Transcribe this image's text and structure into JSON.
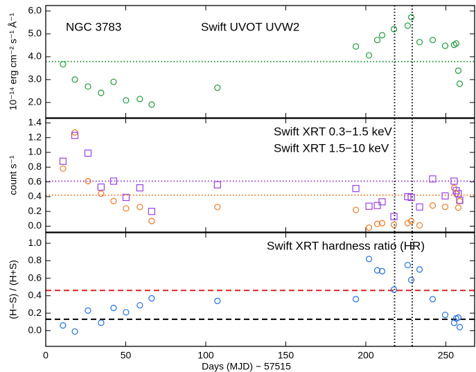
{
  "chart_data": [
    {
      "type": "scatter",
      "annotation": "NGC 3783",
      "ylabel": "10⁻¹⁴ erg cm⁻² s⁻¹ Å⁻¹",
      "xlim": [
        0,
        268
      ],
      "xticks": [
        0,
        50,
        100,
        150,
        200,
        250
      ],
      "ylim": [
        1.33,
        6.24
      ],
      "yticks": [
        {
          "value": 2,
          "label": "2.0"
        },
        {
          "value": 3,
          "label": "3.0"
        },
        {
          "value": 4,
          "label": "4.0"
        },
        {
          "value": 5,
          "label": "5.0"
        },
        {
          "value": 6,
          "label": "6.0"
        }
      ],
      "legend": "upper center",
      "x": [
        10.8,
        18.2,
        26.4,
        34.6,
        42.4,
        50.2,
        58.8,
        66.2,
        107.3,
        193.8,
        202,
        207.2,
        210.2,
        217.6,
        226.2,
        228.4,
        233.6,
        241.8,
        249.6,
        255.2,
        256.5,
        257.8,
        258.7
      ],
      "series": [
        {
          "name": "Swift UVOT UVW2",
          "color": "#1a9a3a",
          "marker": "circle",
          "values": [
            3.67,
            3.0,
            2.7,
            2.42,
            2.9,
            2.09,
            2.15,
            1.91,
            2.64,
            4.45,
            4.06,
            4.73,
            4.94,
            5.21,
            5.36,
            5.73,
            4.64,
            4.73,
            4.48,
            4.52,
            4.58,
            3.39,
            2.82
          ]
        }
      ],
      "hlines": [
        {
          "value": 3.79,
          "color": "#1a9a3a",
          "style": "dotted"
        }
      ],
      "vlines": [
        218,
        229
      ]
    },
    {
      "type": "scatter",
      "ylabel": "count s⁻¹",
      "xlim": [
        0,
        268
      ],
      "xticks": [
        0,
        50,
        100,
        150,
        200,
        250
      ],
      "ylim": [
        -0.08,
        1.46
      ],
      "yticks": [
        {
          "value": 0,
          "label": "0.0"
        },
        0.2,
        0.4,
        0.6,
        0.8,
        {
          "value": 1,
          "label": "1.0"
        },
        1.2,
        1.4
      ],
      "legend": "upper center",
      "x": [
        10.8,
        18.2,
        26.4,
        34.6,
        42.4,
        50.2,
        58.8,
        66.2,
        107.3,
        193.8,
        202,
        207.2,
        210.2,
        217.6,
        226.2,
        228.4,
        233.6,
        241.8,
        249.6,
        255.2,
        256.5,
        257.8,
        258.7
      ],
      "series": [
        {
          "name": "Swift XRT 0.3−1.5 keV",
          "color": "#f07820",
          "marker": "circle",
          "values": [
            0.78,
            1.27,
            0.61,
            0.44,
            0.34,
            0.24,
            0.26,
            0.07,
            0.26,
            0.22,
            -0.02,
            0.03,
            0.04,
            0.02,
            0.04,
            0.07,
            0.01,
            0.28,
            0.26,
            0.52,
            0.44,
            0.25,
            0.34
          ]
        },
        {
          "name": "Swift XRT 1.5−10 keV",
          "color": "#9a40e0",
          "marker": "square",
          "values": [
            0.88,
            1.23,
            0.99,
            0.53,
            0.61,
            0.39,
            0.52,
            0.2,
            0.56,
            0.51,
            0.27,
            0.28,
            0.33,
            0.13,
            0.4,
            0.39,
            0.26,
            0.64,
            0.41,
            0.61,
            0.48,
            0.44,
            0.35
          ]
        }
      ],
      "hlines": [
        {
          "value": 0.61,
          "color": "#9a40e0",
          "style": "dotted"
        },
        {
          "value": 0.42,
          "color": "#f07820",
          "style": "dotted"
        }
      ],
      "vlines": [
        218,
        229
      ]
    },
    {
      "type": "scatter",
      "ylabel": "(H−S) / (H+S)",
      "xlabel": "Days (MJD) − 57515",
      "xlim": [
        0,
        268
      ],
      "xticks": [
        0,
        50,
        100,
        150,
        200,
        250
      ],
      "ylim": [
        -0.18,
        1.12
      ],
      "yticks": [
        {
          "value": 0,
          "label": "0.0"
        },
        0.2,
        0.4,
        0.6,
        0.8,
        {
          "value": 1,
          "label": "1.0"
        }
      ],
      "legend": "upper right",
      "x": [
        10.8,
        18.2,
        26.4,
        34.6,
        42.4,
        50.2,
        58.8,
        66.2,
        107.3,
        193.8,
        202,
        207.2,
        210.2,
        217.6,
        226.2,
        228.4,
        233.6,
        241.8,
        249.6,
        255.2,
        256.5,
        257.8,
        258.7
      ],
      "series": [
        {
          "name": "Swift XRT hardness ratio (HR)",
          "color": "#1e6fe0",
          "marker": "circle",
          "values": [
            0.06,
            -0.01,
            0.23,
            0.09,
            0.26,
            0.21,
            0.29,
            0.37,
            0.34,
            0.36,
            0.82,
            0.69,
            0.68,
            0.47,
            0.75,
            0.58,
            0.7,
            0.36,
            0.18,
            0.09,
            0.14,
            0.15,
            0.04
          ]
        }
      ],
      "hlines": [
        {
          "value": 0.46,
          "color": "#e02020",
          "style": "dashed"
        },
        {
          "value": 0.13,
          "color": "#000000",
          "style": "dashed"
        }
      ],
      "vlines": [
        218,
        229
      ]
    }
  ]
}
